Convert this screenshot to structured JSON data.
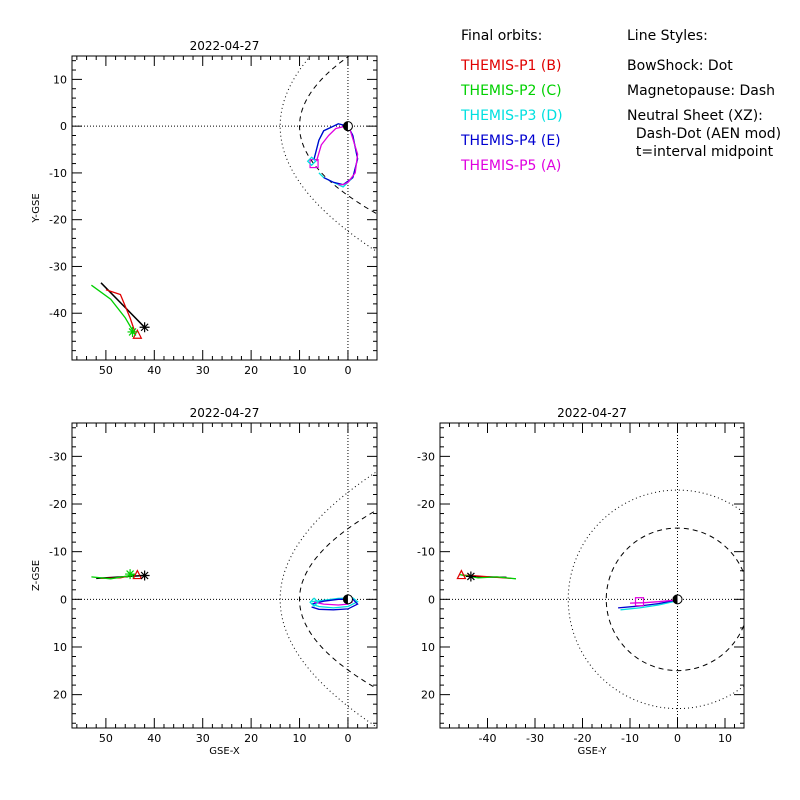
{
  "legend": {
    "final_orbits_title": "Final orbits:",
    "probes": [
      {
        "label": "THEMIS-P1 (B)",
        "color": "#e00000"
      },
      {
        "label": "THEMIS-P2 (C)",
        "color": "#00d000"
      },
      {
        "label": "THEMIS-P3 (D)",
        "color": "#00e0e0"
      },
      {
        "label": "THEMIS-P4 (E)",
        "color": "#0000d0"
      },
      {
        "label": "THEMIS-P5 (A)",
        "color": "#e000e0"
      }
    ],
    "line_styles_title": "Line Styles:",
    "styles": [
      "BowShock: Dot",
      "Magnetopause: Dash",
      "Neutral Sheet (XZ):",
      "  Dash-Dot (AEN mod)",
      "  t=interval midpoint"
    ]
  },
  "chart_data": [
    {
      "type": "line",
      "panel": "xy",
      "title": "2022-04-27",
      "xlabel": "",
      "ylabel": "Y-GSE",
      "xlim": [
        57,
        -6
      ],
      "ylim": [
        15,
        -50
      ],
      "xticks": [
        50,
        40,
        30,
        20,
        10,
        0
      ],
      "yticks": [
        -40,
        -30,
        -20,
        -10,
        0,
        10
      ],
      "series": [
        {
          "probe": "P1",
          "x": [
            50,
            47,
            45,
            44
          ],
          "y": [
            -35,
            -36,
            -41,
            -44
          ]
        },
        {
          "probe": "P2",
          "x": [
            53,
            49,
            46,
            44
          ],
          "y": [
            -34,
            -37,
            -41,
            -44.5
          ]
        },
        {
          "probe": "P3",
          "x": [
            7,
            6,
            5,
            3,
            2,
            0,
            -1,
            -2,
            -1,
            1,
            3,
            5,
            6
          ],
          "y": [
            -7,
            -3,
            -1,
            0,
            0.5,
            0,
            -2,
            -7,
            -11,
            -13,
            -12,
            -11,
            -10
          ]
        },
        {
          "probe": "P4",
          "x": [
            7,
            6,
            5,
            3,
            2,
            0,
            -1,
            -2,
            -1,
            1,
            3,
            5
          ],
          "y": [
            -7,
            -3,
            -1,
            0,
            0.5,
            0,
            -2,
            -7,
            -11,
            -12.5,
            -12,
            -11
          ]
        },
        {
          "probe": "P5",
          "x": [
            6.5,
            5.5,
            4,
            2.5,
            0.5,
            -0.5,
            -2,
            -1.5,
            0,
            1,
            2
          ],
          "y": [
            -7.5,
            -4,
            -2,
            -0.5,
            0,
            -1,
            -6,
            -10,
            -12,
            -12.5,
            -12.5
          ]
        }
      ],
      "reference": {
        "probe": "black",
        "x": [
          51,
          42
        ],
        "y": [
          -33.5,
          -43
        ]
      },
      "markers": [
        {
          "kind": "triangle",
          "color": "#e00000",
          "x": 43.5,
          "y": -44.5
        },
        {
          "kind": "asterisk",
          "color": "#00d000",
          "x": 44.5,
          "y": -44
        },
        {
          "kind": "asterisk",
          "color": "#000000",
          "x": 42,
          "y": -43
        },
        {
          "kind": "square",
          "color": "#e000e0",
          "x": 7,
          "y": -8
        },
        {
          "kind": "diamond",
          "color": "#00e0e0",
          "x": 7.5,
          "y": -7.5
        }
      ]
    },
    {
      "type": "line",
      "panel": "xz",
      "title": "2022-04-27",
      "xlabel": "GSE-X",
      "ylabel": "Z-GSE",
      "xlim": [
        57,
        -6
      ],
      "ylim": [
        -37,
        27
      ],
      "xticks": [
        50,
        40,
        30,
        20,
        10,
        0
      ],
      "yticks": [
        20,
        10,
        0,
        -10,
        -20,
        -30
      ],
      "series": [
        {
          "probe": "P1",
          "x": [
            51,
            47,
            44
          ],
          "y": [
            -4.4,
            -4.5,
            -5.2
          ]
        },
        {
          "probe": "P2",
          "x": [
            53,
            49,
            45,
            44
          ],
          "y": [
            -4.7,
            -4.3,
            -5,
            -5.2
          ]
        },
        {
          "probe": "P3",
          "x": [
            7.5,
            6,
            3,
            0,
            -2,
            -1,
            2,
            5,
            7.5
          ],
          "y": [
            1,
            1.5,
            1.8,
            1.5,
            0.5,
            -0.3,
            -0.2,
            0.2,
            0.5
          ]
        },
        {
          "probe": "P4",
          "x": [
            7.5,
            6,
            3,
            0,
            -2,
            -1,
            2,
            5,
            7.5
          ],
          "y": [
            1.6,
            2.1,
            2.2,
            2,
            1,
            0,
            0,
            0.4,
            1
          ]
        },
        {
          "probe": "P5",
          "x": [
            7,
            5,
            2,
            0,
            -1
          ],
          "y": [
            0.6,
            1,
            1.2,
            1,
            0.5
          ]
        }
      ],
      "reference": {
        "probe": "black",
        "x": [
          52,
          42
        ],
        "y": [
          -4.4,
          -5
        ]
      },
      "markers": [
        {
          "kind": "triangle",
          "color": "#e00000",
          "x": 43.5,
          "y": -5.2
        },
        {
          "kind": "asterisk",
          "color": "#00d000",
          "x": 45,
          "y": -5.3
        },
        {
          "kind": "asterisk",
          "color": "#000000",
          "x": 42,
          "y": -5
        },
        {
          "kind": "diamond",
          "color": "#00e0e0",
          "x": 7,
          "y": 0.6
        }
      ]
    },
    {
      "type": "line",
      "panel": "yz",
      "title": "2022-04-27",
      "xlabel": "GSE-Y",
      "ylabel": "",
      "xlim": [
        -50,
        14
      ],
      "ylim": [
        -37,
        27
      ],
      "xticks": [
        -40,
        -30,
        -20,
        -10,
        0,
        10
      ],
      "yticks": [
        20,
        10,
        0,
        -10,
        -20,
        -30
      ],
      "series": [
        {
          "probe": "P1",
          "x": [
            -45.5,
            -42,
            -38,
            -35
          ],
          "y": [
            -5.1,
            -4.9,
            -4.6,
            -4.4
          ]
        },
        {
          "probe": "P2",
          "x": [
            -46,
            -42,
            -38,
            -34
          ],
          "y": [
            -5.2,
            -4.5,
            -4.7,
            -4.3
          ]
        },
        {
          "probe": "P3",
          "x": [
            -12,
            -8,
            -4,
            -1,
            0
          ],
          "y": [
            2.2,
            1.8,
            1.2,
            0.5,
            0
          ]
        },
        {
          "probe": "P4",
          "x": [
            -12.5,
            -8,
            -4,
            -1,
            0
          ],
          "y": [
            1.8,
            1.4,
            0.9,
            0.3,
            0
          ]
        },
        {
          "probe": "P5",
          "x": [
            -10,
            -7,
            -4,
            -1,
            0
          ],
          "y": [
            0.8,
            0.7,
            0.5,
            0.2,
            0
          ]
        }
      ],
      "reference": {
        "probe": "black",
        "x": [
          -44,
          -36
        ],
        "y": [
          -4.8,
          -4.6
        ]
      },
      "markers": [
        {
          "kind": "triangle",
          "color": "#e00000",
          "x": -45.5,
          "y": -5.2
        },
        {
          "kind": "asterisk",
          "color": "#000000",
          "x": -43.5,
          "y": -4.8
        },
        {
          "kind": "square",
          "color": "#e000e0",
          "x": -8,
          "y": 0.5
        }
      ]
    }
  ]
}
